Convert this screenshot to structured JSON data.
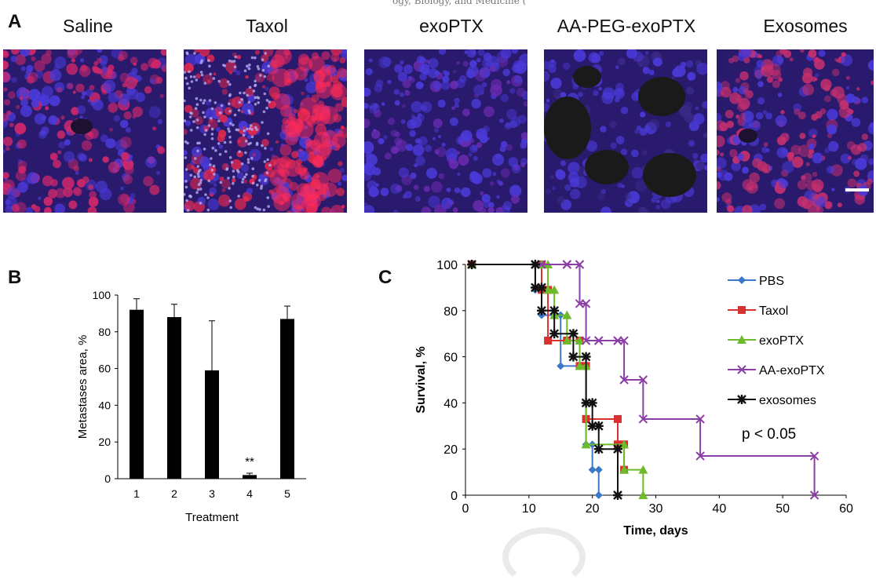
{
  "panelA": {
    "letter": "A",
    "header_fragment": "ogy, Biology, and Medicine (",
    "images": [
      {
        "title": "Saline",
        "tint": "#d0286a"
      },
      {
        "title": "Taxol",
        "tint": "#e0284f"
      },
      {
        "title": "exoPTX",
        "tint": "#6a2bb0"
      },
      {
        "title": "AA-PEG-exoPTX",
        "tint": "#3a2a88"
      },
      {
        "title": "Exosomes",
        "tint": "#c6306f"
      }
    ]
  },
  "panelB": {
    "letter": "B"
  },
  "panelC": {
    "letter": "C",
    "annotation": "p < 0.05"
  },
  "chart_data": [
    {
      "type": "bar",
      "xlabel": "Treatment",
      "ylabel": "Metastases area, %",
      "categories": [
        "1",
        "2",
        "3",
        "4",
        "5"
      ],
      "values": [
        92,
        88,
        59,
        2,
        87
      ],
      "errors": [
        6,
        7,
        27,
        1,
        7
      ],
      "significance": [
        {
          "category": "4",
          "label": "**"
        }
      ],
      "ylim": [
        0,
        100
      ],
      "yticks": [
        0,
        20,
        40,
        60,
        80,
        100
      ],
      "bar_color": "#000000"
    },
    {
      "type": "line",
      "step": true,
      "xlabel": "Time, days",
      "ylabel": "Survival, %",
      "xlim": [
        0,
        60
      ],
      "ylim": [
        0,
        100
      ],
      "xticks": [
        0,
        10,
        20,
        30,
        40,
        50,
        60
      ],
      "yticks": [
        0,
        20,
        40,
        60,
        80,
        100
      ],
      "legend_position": "right",
      "series": [
        {
          "name": "PBS",
          "color": "#3c78c8",
          "marker": "diamond",
          "x": [
            1,
            11,
            12,
            15,
            19,
            20,
            21
          ],
          "y": [
            100,
            89,
            78,
            56,
            22,
            11,
            0
          ]
        },
        {
          "name": "Taxol",
          "color": "#d93030",
          "marker": "square",
          "x": [
            1,
            12,
            13,
            16,
            18,
            19,
            24,
            25
          ],
          "y": [
            100,
            89,
            67,
            67,
            56,
            33,
            22,
            11
          ]
        },
        {
          "name": "exoPTX",
          "color": "#6dbb2a",
          "marker": "triangle",
          "x": [
            1,
            12,
            13,
            14,
            16,
            18,
            19,
            25,
            28
          ],
          "y": [
            100,
            100,
            89,
            78,
            67,
            56,
            22,
            11,
            0
          ]
        },
        {
          "name": "AA-exoPTX",
          "color": "#8b3fa6",
          "marker": "x",
          "x": [
            1,
            12,
            16,
            18,
            19,
            21,
            24,
            25,
            28,
            37,
            55
          ],
          "y": [
            100,
            100,
            100,
            83,
            67,
            67,
            67,
            50,
            33,
            17,
            0
          ]
        },
        {
          "name": "exosomes",
          "color": "#111111",
          "marker": "star",
          "x": [
            1,
            11,
            12,
            14,
            17,
            19,
            20,
            21,
            24
          ],
          "y": [
            100,
            90,
            80,
            70,
            60,
            40,
            30,
            20,
            0
          ]
        }
      ]
    }
  ]
}
